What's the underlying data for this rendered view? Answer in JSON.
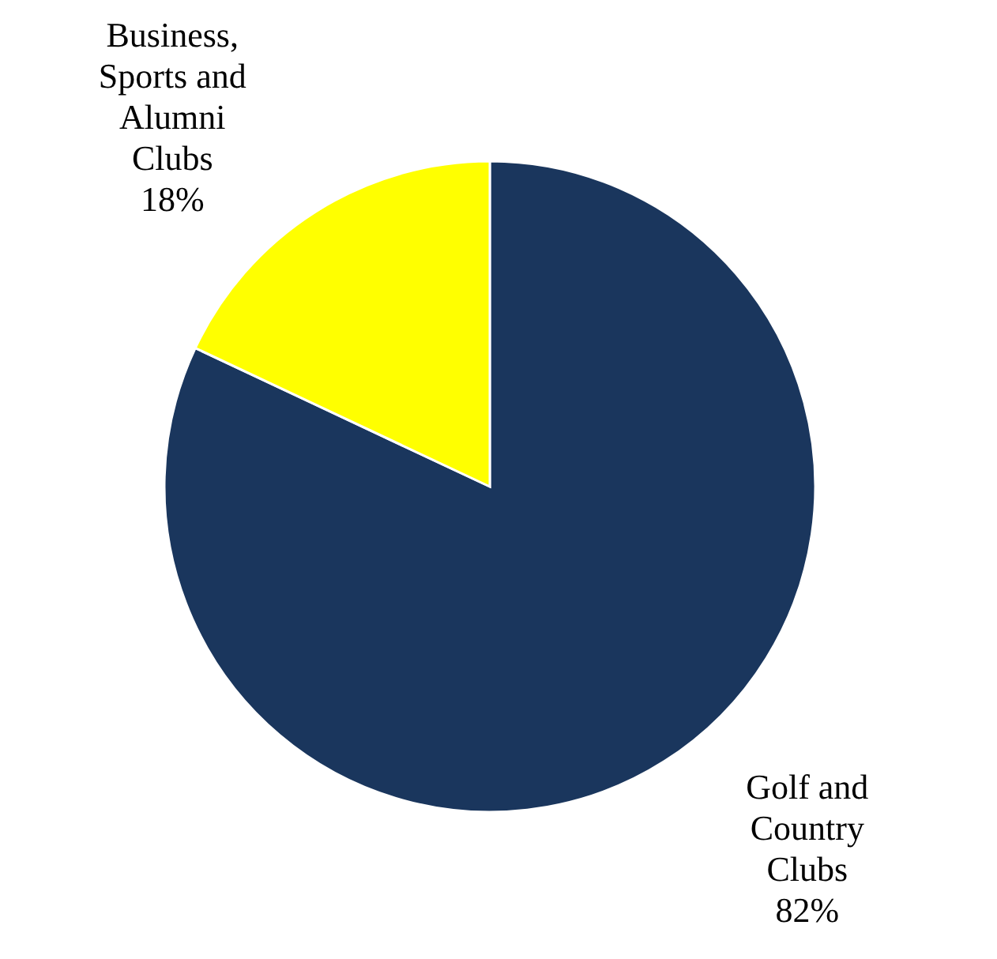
{
  "chart_data": {
    "type": "pie",
    "categories": [
      "Golf and Country Clubs",
      "Business, Sports and Alumni Clubs"
    ],
    "values": [
      82,
      18
    ],
    "colors": [
      "#1a365d",
      "#ffff00"
    ],
    "value_labels": [
      "82%",
      "18%"
    ]
  }
}
